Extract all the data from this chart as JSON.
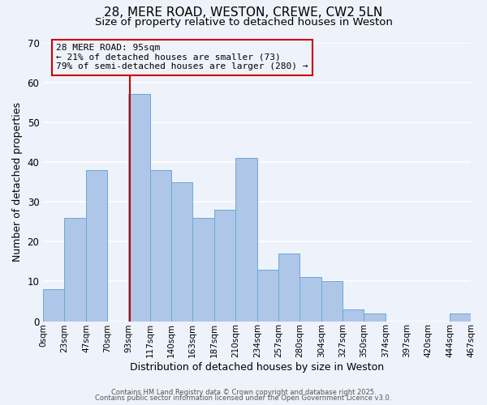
{
  "title": "28, MERE ROAD, WESTON, CREWE, CW2 5LN",
  "subtitle": "Size of property relative to detached houses in Weston",
  "xlabel": "Distribution of detached houses by size in Weston",
  "ylabel": "Number of detached properties",
  "bins": [
    0,
    23,
    47,
    70,
    93,
    117,
    140,
    163,
    187,
    210,
    234,
    257,
    280,
    304,
    327,
    350,
    374,
    397,
    420,
    444,
    467
  ],
  "counts": [
    8,
    26,
    38,
    0,
    57,
    38,
    35,
    26,
    28,
    41,
    13,
    17,
    11,
    10,
    3,
    2,
    0,
    0,
    0,
    2
  ],
  "tick_labels": [
    "0sqm",
    "23sqm",
    "47sqm",
    "70sqm",
    "93sqm",
    "117sqm",
    "140sqm",
    "163sqm",
    "187sqm",
    "210sqm",
    "234sqm",
    "257sqm",
    "280sqm",
    "304sqm",
    "327sqm",
    "350sqm",
    "374sqm",
    "397sqm",
    "420sqm",
    "444sqm",
    "467sqm"
  ],
  "bar_color": "#aec6e8",
  "bar_edge_color": "#6aaad4",
  "property_line_x": 95,
  "property_line_color": "#cc0000",
  "annotation_text": "28 MERE ROAD: 95sqm\n← 21% of detached houses are smaller (73)\n79% of semi-detached houses are larger (280) →",
  "ylim": [
    0,
    70
  ],
  "footer1": "Contains HM Land Registry data © Crown copyright and database right 2025.",
  "footer2": "Contains public sector information licensed under the Open Government Licence v3.0.",
  "bg_color": "#eef2fa",
  "grid_color": "#ffffff",
  "title_fontsize": 11,
  "subtitle_fontsize": 9.5,
  "axis_label_fontsize": 9,
  "tick_fontsize": 7.5,
  "annotation_fontsize": 8,
  "footer_fontsize": 6
}
